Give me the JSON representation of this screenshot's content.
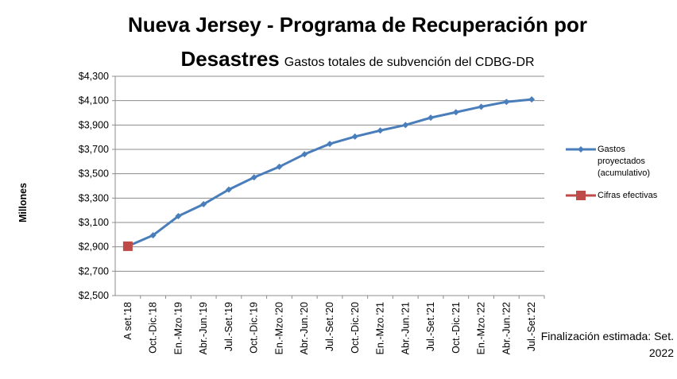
{
  "chart_data": {
    "type": "line",
    "title": "Nueva Jersey - Programa de Recuperación por Desastres",
    "subtitle": "Gastos totales de subvención del CDBG-DR",
    "y_label": "Millones",
    "annotation": "Finalización estimada: Set. 2022",
    "categories": [
      "A set.'18",
      "Oct.-Dic.'18",
      "En.-Mzo.'19",
      "Abr.-Jun.'19",
      "Jul.-Set.'19",
      "Oct.-Dic.'19",
      "En.-Mzo.'20",
      "Abr.-Jun.'20",
      "Jul.-Set.'20",
      "Oct.-Dic.'20",
      "En.-Mzo.'21",
      "Abr.-Jun.'21",
      "Jul.-Set.'21",
      "Oct.-Dic.'21",
      "En.-Mzo.'22",
      "Abr.-Jun.'22",
      "Jul.-Set.'22"
    ],
    "series": [
      {
        "name": "Gastos proyectados (acumulativo)",
        "color": "#4a7ebb",
        "marker": "diamond",
        "values": [
          2905,
          2995,
          3152,
          3250,
          3370,
          3470,
          3557,
          3660,
          3745,
          3805,
          3855,
          3900,
          3960,
          4005,
          4050,
          4090,
          4110
        ]
      },
      {
        "name": "Cifras efectivas",
        "color": "#be4b48",
        "marker": "square",
        "values": [
          2905,
          null,
          null,
          null,
          null,
          null,
          null,
          null,
          null,
          null,
          null,
          null,
          null,
          null,
          null,
          null,
          null
        ]
      }
    ],
    "ylim": [
      2500,
      4300
    ],
    "yticks": [
      {
        "value": 2500,
        "label": "$2,500"
      },
      {
        "value": 2700,
        "label": "$2,700"
      },
      {
        "value": 2900,
        "label": "$2,900"
      },
      {
        "value": 3100,
        "label": "$3,100"
      },
      {
        "value": 3300,
        "label": "$3,300"
      },
      {
        "value": 3500,
        "label": "$3,500"
      },
      {
        "value": 3700,
        "label": "$3,700"
      },
      {
        "value": 3900,
        "label": "$3,900"
      },
      {
        "value": 4100,
        "label": "$4,100"
      },
      {
        "value": 4300,
        "label": "$4,300"
      }
    ],
    "grid": true,
    "legend": "right"
  }
}
